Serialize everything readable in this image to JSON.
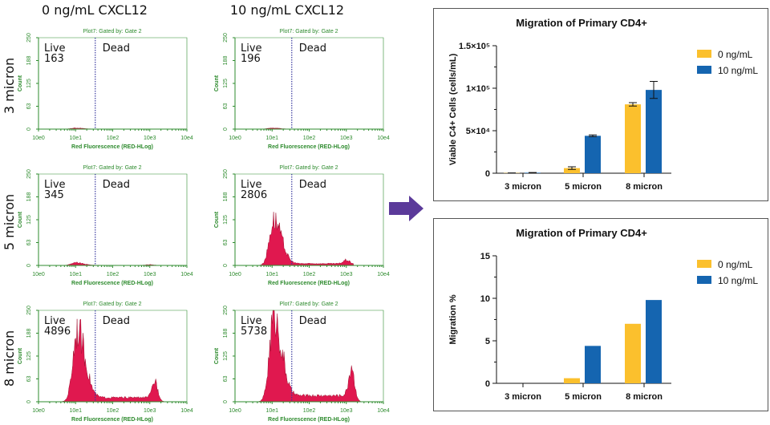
{
  "column_headers": [
    "0 ng/mL CXCL12",
    "10 ng/mL CXCL12"
  ],
  "row_labels": [
    "3 micron",
    "5 micron",
    "8 micron"
  ],
  "histogram_common": {
    "title": "Plot7: Gated by: Gate 2",
    "ylabel": "Count",
    "xlabel": "Red Fluorescence (RED-HLog)",
    "yticks": [
      "250",
      "188",
      "125",
      "63",
      "0"
    ],
    "xticks": [
      "10e0",
      "10e1",
      "10e2",
      "10e3",
      "10e4"
    ],
    "live_label": "Live",
    "dead_label": "Dead",
    "ylim": [
      0,
      250
    ],
    "xlim_decades": [
      0,
      4
    ],
    "gate_decade": 1.53,
    "fill_color": "#e0184f",
    "axis_color": "#2e8b2e",
    "gate_color": "#3a3aa0"
  },
  "arrow_color": "#5b3a9a",
  "chart_data": [
    {
      "type": "histogram",
      "row": "3 micron",
      "condition": "0 ng/mL CXCL12",
      "live_count": "163",
      "live_peak_count": 3,
      "live_peak_decade": 1.0,
      "dead_peak_count": 0,
      "dead_peak_decade": 3.0
    },
    {
      "type": "histogram",
      "row": "3 micron",
      "condition": "10 ng/mL CXCL12",
      "live_count": "196",
      "live_peak_count": 3,
      "live_peak_decade": 1.0,
      "dead_peak_count": 0,
      "dead_peak_decade": 3.0
    },
    {
      "type": "histogram",
      "row": "5 micron",
      "condition": "0 ng/mL CXCL12",
      "live_count": "345",
      "live_peak_count": 8,
      "live_peak_decade": 1.0,
      "dead_peak_count": 2,
      "dead_peak_decade": 3.0
    },
    {
      "type": "histogram",
      "row": "5 micron",
      "condition": "10 ng/mL CXCL12",
      "live_count": "2806",
      "live_peak_count": 125,
      "live_peak_decade": 1.05,
      "dead_peak_count": 10,
      "dead_peak_decade": 3.0
    },
    {
      "type": "histogram",
      "row": "8 micron",
      "condition": "0 ng/mL CXCL12",
      "live_count": "4896",
      "live_peak_count": 200,
      "live_peak_decade": 1.05,
      "dead_peak_count": 45,
      "dead_peak_decade": 3.15
    },
    {
      "type": "histogram",
      "row": "8 micron",
      "condition": "10 ng/mL CXCL12",
      "live_count": "5738",
      "live_peak_count": 235,
      "live_peak_decade": 1.05,
      "dead_peak_count": 80,
      "dead_peak_decade": 3.15
    },
    {
      "type": "bar",
      "title": "Migration of Primary CD4+",
      "ylabel": "Viable C4+ Cells (cells/mL)",
      "categories": [
        "3 micron",
        "5 micron",
        "8 micron"
      ],
      "ylim": [
        0,
        150000
      ],
      "yticks": [
        {
          "value": 0,
          "label": "0"
        },
        {
          "value": 50000,
          "label": "5×10⁴"
        },
        {
          "value": 100000,
          "label": "1×10⁵"
        },
        {
          "value": 150000,
          "label": "1.5×10⁵"
        }
      ],
      "series": [
        {
          "name": "0 ng/mL",
          "color": "#fbc02d",
          "values": [
            300,
            6000,
            81000
          ],
          "errors": [
            100,
            1500,
            2000
          ]
        },
        {
          "name": "10 ng/mL",
          "color": "#1565b0",
          "values": [
            600,
            44000,
            98000
          ],
          "errors": [
            200,
            1000,
            10000
          ]
        }
      ],
      "legend": "top-right"
    },
    {
      "type": "bar",
      "title": "Migration of Primary CD4+",
      "ylabel": "Migration %",
      "categories": [
        "3 micron",
        "5 micron",
        "8 micron"
      ],
      "ylim": [
        0,
        15
      ],
      "yticks": [
        {
          "value": 0,
          "label": "0"
        },
        {
          "value": 5,
          "label": "5"
        },
        {
          "value": 10,
          "label": "10"
        },
        {
          "value": 15,
          "label": "15"
        }
      ],
      "series": [
        {
          "name": "0 ng/mL",
          "color": "#fbc02d",
          "values": [
            0,
            0.6,
            7.0
          ]
        },
        {
          "name": "10 ng/mL",
          "color": "#1565b0",
          "values": [
            0,
            4.4,
            9.8
          ]
        }
      ],
      "legend": "top-right"
    }
  ]
}
